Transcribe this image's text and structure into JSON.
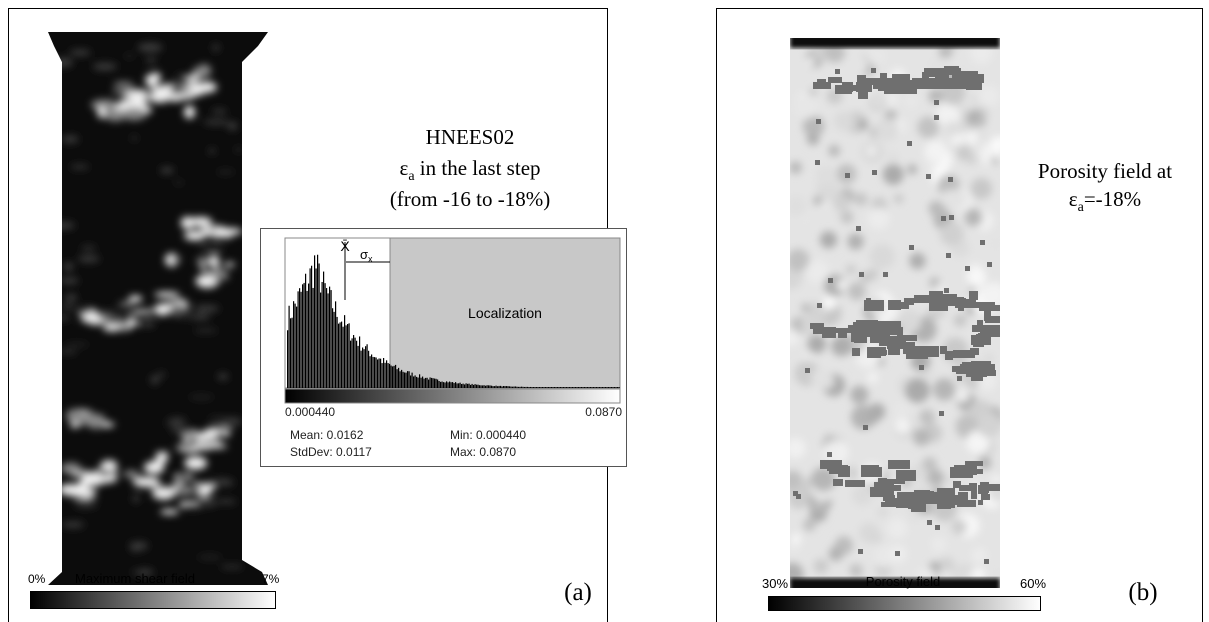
{
  "panel_a": {
    "title": "HNEES02",
    "strain_symbol": "ε",
    "strain_subscript": "a",
    "strain_text": " in the last step",
    "range_text": "(from -16 to -18%)",
    "histogram": {
      "mean_marker": "X̄",
      "sigma_symbol": "σ",
      "sigma_subscript": "x",
      "region_label": "Localization",
      "axis_min": "0.000440",
      "axis_max": "0.0870",
      "mean": "Mean: 0.0162",
      "min": "Min: 0.000440",
      "stddev": "StdDev: 0.0117",
      "max": "Max: 0.0870"
    },
    "colorbar": {
      "min": "0%",
      "label": "Maximum shear field",
      "max": "7%"
    },
    "panel_label": "(a)"
  },
  "panel_b": {
    "title": "Porosity field at",
    "strain_symbol": "ε",
    "strain_subscript": "a",
    "strain_text": "=-18%",
    "colorbar": {
      "min": "30%",
      "label": "Porosity field",
      "max": "60%"
    },
    "panel_label": "(b)"
  }
}
